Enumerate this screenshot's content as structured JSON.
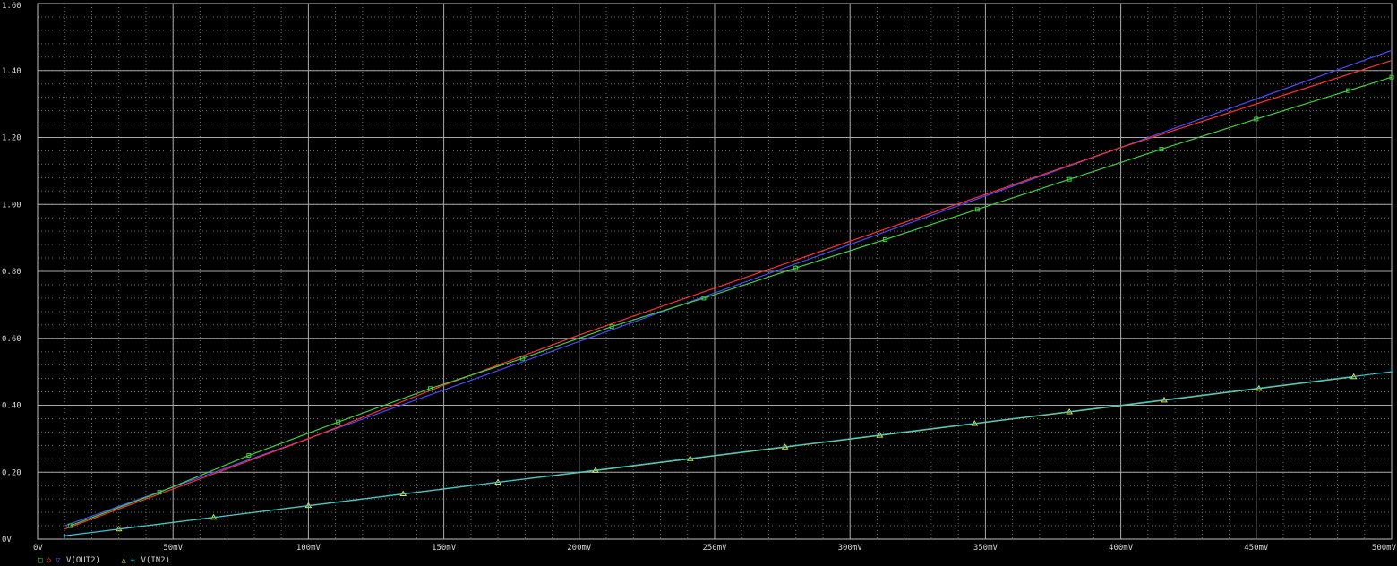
{
  "chart_data": {
    "type": "line",
    "title": "",
    "xlabel": "",
    "ylabel": "",
    "xlim": [
      0,
      500
    ],
    "ylim": [
      0,
      1.6
    ],
    "grid": true,
    "background": "#000000",
    "x_ticks": [
      0,
      50,
      100,
      150,
      200,
      250,
      300,
      350,
      400,
      450,
      500
    ],
    "x_tick_labels": [
      "0V",
      "50mV",
      "100mV",
      "150mV",
      "200mV",
      "250mV",
      "300mV",
      "350mV",
      "400mV",
      "450mV",
      "500mV"
    ],
    "y_ticks": [
      0,
      0.2,
      0.4,
      0.6,
      0.8,
      1.0,
      1.2,
      1.4,
      1.6
    ],
    "y_tick_labels": [
      "0V",
      "0.20",
      "0.40",
      "0.60",
      "0.80",
      "1.00",
      "1.20",
      "1.40",
      "1.60"
    ],
    "legend_position": "bottom-left",
    "legend": [
      {
        "text": "V(OUT2)",
        "series": [
          "s-green",
          "s-red",
          "s-blue"
        ],
        "symbols": [
          "□",
          "◇",
          "▽"
        ]
      },
      {
        "text": "V(IN2)",
        "series": [
          "s-yellow",
          "s-cyan"
        ],
        "symbols": [
          "△",
          "+"
        ]
      }
    ],
    "series": [
      {
        "id": "s-blue",
        "color": "#4a4aff",
        "marker": "none",
        "x": [
          10,
          500
        ],
        "y": [
          0.04,
          1.46
        ]
      },
      {
        "id": "s-red",
        "color": "#ff3030",
        "marker": "none",
        "x": [
          10,
          50,
          100,
          150,
          200,
          250,
          300,
          350,
          400,
          450,
          500
        ],
        "y": [
          0.03,
          0.15,
          0.3,
          0.46,
          0.61,
          0.75,
          0.89,
          1.03,
          1.17,
          1.3,
          1.43
        ]
      },
      {
        "id": "s-green",
        "color": "#40d040",
        "marker": "square",
        "x": [
          12,
          45,
          78,
          111,
          145,
          179,
          212,
          246,
          280,
          313,
          347,
          381,
          415,
          450,
          484,
          500
        ],
        "y": [
          0.04,
          0.14,
          0.25,
          0.35,
          0.45,
          0.54,
          0.635,
          0.72,
          0.81,
          0.895,
          0.985,
          1.075,
          1.165,
          1.255,
          1.34,
          1.38
        ]
      },
      {
        "id": "s-yellow",
        "color": "#e0e040",
        "marker": "triangle",
        "x": [
          30,
          65,
          100,
          135,
          170,
          206,
          241,
          276,
          311,
          346,
          381,
          416,
          451,
          486
        ],
        "y": [
          0.03,
          0.065,
          0.1,
          0.135,
          0.17,
          0.205,
          0.24,
          0.275,
          0.31,
          0.345,
          0.38,
          0.415,
          0.45,
          0.485
        ]
      },
      {
        "id": "s-cyan",
        "color": "#30c8d8",
        "marker": "plus",
        "x": [
          10,
          500
        ],
        "y": [
          0.01,
          0.5
        ]
      }
    ]
  }
}
